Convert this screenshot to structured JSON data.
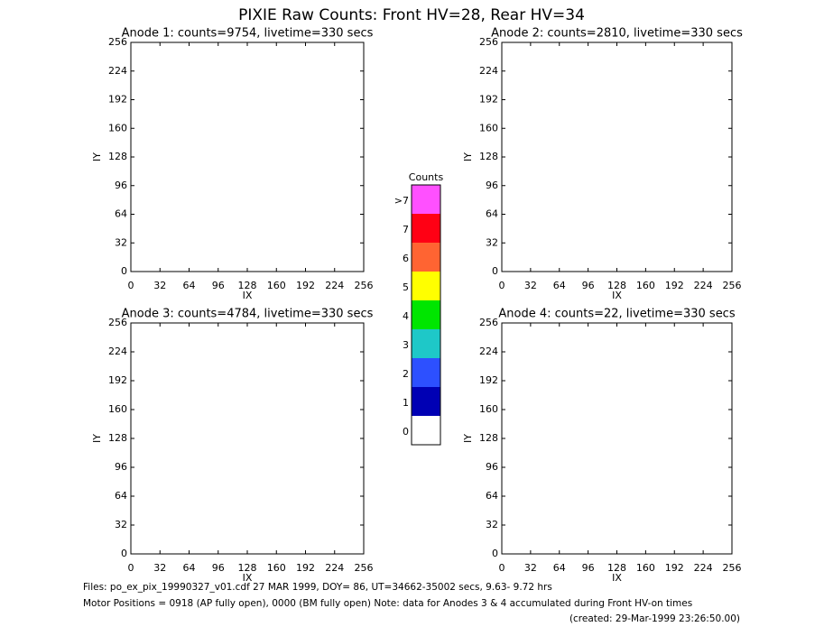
{
  "title": "PIXIE Raw Counts:  Front HV=28, Rear HV=34",
  "chart_data": [
    {
      "type": "heatmap",
      "title": "Anode 1: counts=9754, livetime=330 secs",
      "x_label": "IX",
      "y_label": "IY",
      "xlim": [
        0,
        256
      ],
      "ylim": [
        0,
        256
      ],
      "xticks": [
        0,
        32,
        64,
        96,
        128,
        160,
        192,
        224,
        256
      ],
      "yticks": [
        0,
        32,
        64,
        96,
        128,
        160,
        192,
        224,
        256
      ]
    },
    {
      "type": "heatmap",
      "title": "Anode 2: counts=2810, livetime=330 secs",
      "x_label": "IX",
      "y_label": "IY",
      "xlim": [
        0,
        256
      ],
      "ylim": [
        0,
        256
      ],
      "xticks": [
        0,
        32,
        64,
        96,
        128,
        160,
        192,
        224,
        256
      ],
      "yticks": [
        0,
        32,
        64,
        96,
        128,
        160,
        192,
        224,
        256
      ]
    },
    {
      "type": "heatmap",
      "title": "Anode 3: counts=4784, livetime=330 secs",
      "x_label": "IX",
      "y_label": "IY",
      "xlim": [
        0,
        256
      ],
      "ylim": [
        0,
        256
      ],
      "xticks": [
        0,
        32,
        64,
        96,
        128,
        160,
        192,
        224,
        256
      ],
      "yticks": [
        0,
        32,
        64,
        96,
        128,
        160,
        192,
        224,
        256
      ]
    },
    {
      "type": "heatmap",
      "title": "Anode 4: counts=22, livetime=330 secs",
      "x_label": "IX",
      "y_label": "IY",
      "xlim": [
        0,
        256
      ],
      "ylim": [
        0,
        256
      ],
      "xticks": [
        0,
        32,
        64,
        96,
        128,
        160,
        192,
        224,
        256
      ],
      "yticks": [
        0,
        32,
        64,
        96,
        128,
        160,
        192,
        224,
        256
      ]
    }
  ],
  "colorbar": {
    "title": "Counts",
    "levels": [
      {
        "label": "0",
        "color": "#ffffff"
      },
      {
        "label": "1",
        "color": "#0000b4"
      },
      {
        "label": "2",
        "color": "#2d50ff"
      },
      {
        "label": "3",
        "color": "#1ec8c8"
      },
      {
        "label": "4",
        "color": "#00e600"
      },
      {
        "label": "5",
        "color": "#ffff00"
      },
      {
        "label": "6",
        "color": "#ff6432"
      },
      {
        "label": "7",
        "color": "#ff0014"
      },
      {
        "label": ">7",
        "color": "#ff50ff"
      }
    ]
  },
  "footer": {
    "files": "Files: po_ex_pix_19990327_v01.cdf   27 MAR 1999, DOY= 86, UT=34662-35002 secs,  9.63- 9.72 hrs",
    "motor": "Motor Positions = 0918 (AP fully open), 0000 (BM fully open)    Note: data for Anodes 3 & 4 accumulated during Front HV-on times",
    "created": "(created: 29-Mar-1999 23:26:50.00)"
  }
}
